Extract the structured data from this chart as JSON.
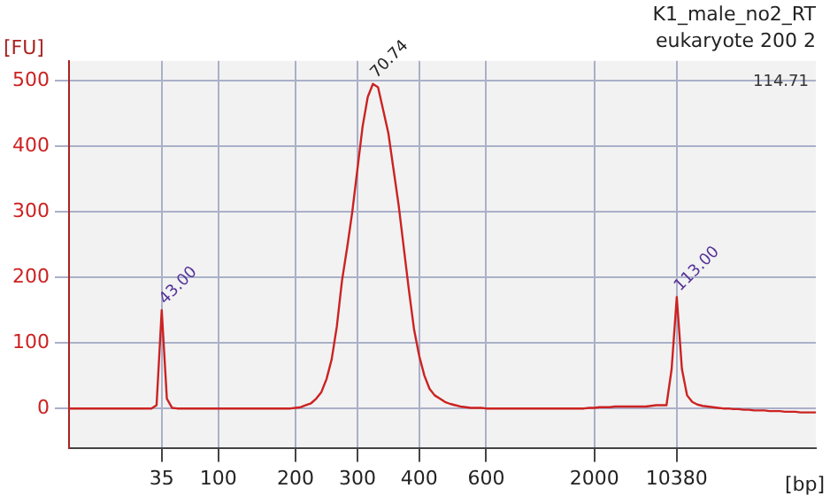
{
  "chart_data": {
    "type": "line",
    "title": "K1_male_no2_RT",
    "subtitle": "eukaryote 200 2",
    "xlabel": "[bp]",
    "ylabel": "[FU]",
    "categories": [
      null,
      null,
      null,
      null,
      null,
      null,
      null,
      null,
      null,
      null,
      null,
      null,
      null,
      null,
      null,
      null,
      null,
      null,
      "35",
      null,
      null,
      null,
      null,
      null,
      null,
      null,
      null,
      null,
      null,
      "100",
      null,
      null,
      null,
      null,
      null,
      null,
      null,
      null,
      null,
      null,
      null,
      null,
      null,
      null,
      "200",
      null,
      null,
      null,
      null,
      null,
      null,
      null,
      null,
      null,
      null,
      null,
      "300",
      null,
      null,
      null,
      null,
      null,
      null,
      null,
      null,
      null,
      null,
      null,
      "400",
      null,
      null,
      null,
      null,
      null,
      null,
      null,
      null,
      null,
      null,
      null,
      null,
      "600",
      null,
      null,
      null,
      null,
      null,
      null,
      null,
      null,
      null,
      null,
      null,
      null,
      null,
      null,
      null,
      null,
      null,
      null,
      null,
      null,
      "2000",
      null,
      null,
      null,
      null,
      null,
      null,
      null,
      null,
      null,
      null,
      null,
      null,
      null,
      null,
      null,
      "10380",
      null,
      null,
      null,
      null,
      null,
      null,
      null,
      null,
      null,
      null,
      null,
      null,
      null,
      null,
      null,
      null,
      null,
      null,
      null,
      null,
      null,
      null,
      null,
      null,
      null,
      null,
      null
    ],
    "series": [
      {
        "color": "#cc2222",
        "values": [
          0,
          0,
          0,
          0,
          0,
          0,
          0,
          0,
          0,
          0,
          0,
          0,
          0,
          0,
          0,
          0,
          0,
          5,
          150,
          15,
          1,
          0,
          0,
          0,
          0,
          0,
          0,
          0,
          0,
          0,
          0,
          0,
          0,
          0,
          0,
          0,
          0,
          0,
          0,
          0,
          0,
          0,
          0,
          0,
          1,
          2,
          5,
          8,
          15,
          25,
          45,
          75,
          125,
          195,
          245,
          300,
          365,
          430,
          475,
          495,
          490,
          455,
          420,
          365,
          310,
          245,
          180,
          120,
          80,
          50,
          30,
          20,
          15,
          10,
          7,
          5,
          3,
          2,
          1,
          1,
          1,
          0,
          0,
          0,
          0,
          0,
          0,
          0,
          0,
          0,
          0,
          0,
          0,
          0,
          0,
          0,
          0,
          0,
          0,
          0,
          0,
          1,
          1,
          2,
          2,
          2,
          3,
          3,
          3,
          3,
          3,
          3,
          3,
          4,
          5,
          5,
          5,
          60,
          170,
          60,
          20,
          10,
          6,
          4,
          3,
          2,
          1,
          0,
          0,
          -1,
          -1,
          -2,
          -2,
          -3,
          -3,
          -3,
          -4,
          -4,
          -4,
          -5,
          -5,
          -5,
          -6,
          -6,
          -6,
          -6
        ]
      }
    ],
    "ylim": [
      -60,
      530
    ],
    "yticks": [
      0,
      100,
      200,
      300,
      400,
      500
    ],
    "grid": true,
    "legend": false,
    "marker": "none",
    "line_style": "solid",
    "annotations": [
      {
        "text": "43.00",
        "x": "35",
        "y": 150
      },
      "70.74",
      {
        "text": "113.00",
        "x": "10380",
        "y": 170
      },
      "114.71"
    ]
  }
}
